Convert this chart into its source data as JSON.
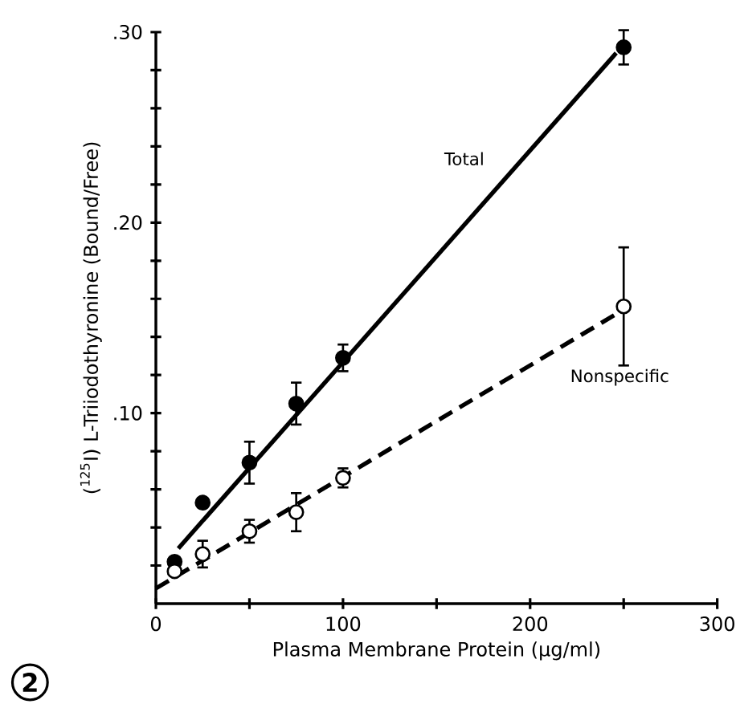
{
  "chart_data": {
    "type": "scatter",
    "xlabel": "Plasma Membrane Protein (µg/ml)",
    "ylabel": "($^{125}$I) L-Triiodothyronine (Bound/Free)",
    "xlim": [
      0,
      300
    ],
    "ylim": [
      0,
      0.3
    ],
    "xticks": [
      0,
      {
        "value": 50,
        "label": null
      },
      100,
      {
        "value": 150,
        "label": null
      },
      200,
      {
        "value": 250,
        "label": null
      },
      300
    ],
    "yticks": [
      {
        "value": 0.02,
        "label": null
      },
      {
        "value": 0.04,
        "label": null
      },
      {
        "value": 0.06,
        "label": null
      },
      {
        "value": 0.08,
        "label": null
      },
      {
        "value": 0.1,
        "label": ".10"
      },
      {
        "value": 0.12,
        "label": null
      },
      {
        "value": 0.14,
        "label": null
      },
      {
        "value": 0.16,
        "label": null
      },
      {
        "value": 0.18,
        "label": null
      },
      {
        "value": 0.2,
        "label": ".20"
      },
      {
        "value": 0.22,
        "label": null
      },
      {
        "value": 0.24,
        "label": null
      },
      {
        "value": 0.26,
        "label": null
      },
      {
        "value": 0.28,
        "label": null
      },
      {
        "value": 0.3,
        "label": ".30"
      }
    ],
    "annotations": [
      "2"
    ],
    "legend": false,
    "series": [
      {
        "marker": "circle",
        "color": "#000000",
        "x": [
          10,
          25,
          50,
          75,
          100,
          250
        ],
        "values": [
          0.022,
          0.053,
          0.074,
          0.105,
          0.129,
          0.292
        ],
        "errors": [
          null,
          null,
          0.011,
          0.011,
          0.007,
          0.009
        ]
      },
      {
        "marker": "circle",
        "color": "#ffffff",
        "x": [
          10,
          25,
          50,
          75,
          100,
          250
        ],
        "values": [
          0.017,
          0.026,
          0.038,
          0.048,
          0.066,
          0.156
        ],
        "errors": [
          null,
          0.007,
          0.006,
          0.01,
          0.005,
          0.031
        ]
      },
      {
        "type": "line",
        "marker": "none",
        "name": "Total",
        "color": "#000000",
        "line_style": "solid",
        "x": [
          12,
          246
        ],
        "values": [
          0.029,
          0.289
        ]
      },
      {
        "type": "line",
        "marker": "none",
        "name": "Nonspecific",
        "color": "#000000",
        "line_style": "dashed",
        "x": [
          0,
          246
        ],
        "values": [
          0.008,
          0.152
        ]
      }
    ]
  }
}
